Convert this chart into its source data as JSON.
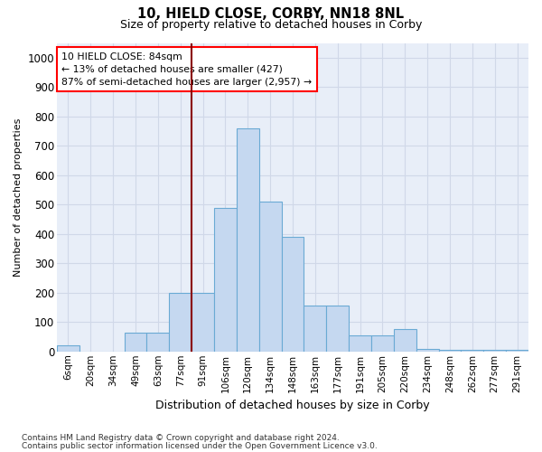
{
  "title1": "10, HIELD CLOSE, CORBY, NN18 8NL",
  "title2": "Size of property relative to detached houses in Corby",
  "xlabel": "Distribution of detached houses by size in Corby",
  "ylabel": "Number of detached properties",
  "categories": [
    "6sqm",
    "20sqm",
    "34sqm",
    "49sqm",
    "63sqm",
    "77sqm",
    "91sqm",
    "106sqm",
    "120sqm",
    "134sqm",
    "148sqm",
    "163sqm",
    "177sqm",
    "191sqm",
    "205sqm",
    "220sqm",
    "234sqm",
    "248sqm",
    "262sqm",
    "277sqm",
    "291sqm"
  ],
  "values": [
    20,
    0,
    0,
    65,
    65,
    200,
    200,
    490,
    760,
    510,
    390,
    155,
    155,
    55,
    55,
    75,
    10,
    5,
    5,
    5,
    5
  ],
  "bar_color": "#c5d8f0",
  "bar_edge_color": "#6aaad4",
  "vline_color": "#8b0000",
  "vline_x_index": 5.5,
  "annotation_text": "10 HIELD CLOSE: 84sqm\n← 13% of detached houses are smaller (427)\n87% of semi-detached houses are larger (2,957) →",
  "annotation_box_facecolor": "white",
  "annotation_box_edgecolor": "red",
  "ylim": [
    0,
    1000
  ],
  "yticks": [
    0,
    100,
    200,
    300,
    400,
    500,
    600,
    700,
    800,
    900,
    1000
  ],
  "grid_color": "#d0d8e8",
  "bg_color": "#e8eef8",
  "footer1": "Contains HM Land Registry data © Crown copyright and database right 2024.",
  "footer2": "Contains public sector information licensed under the Open Government Licence v3.0."
}
